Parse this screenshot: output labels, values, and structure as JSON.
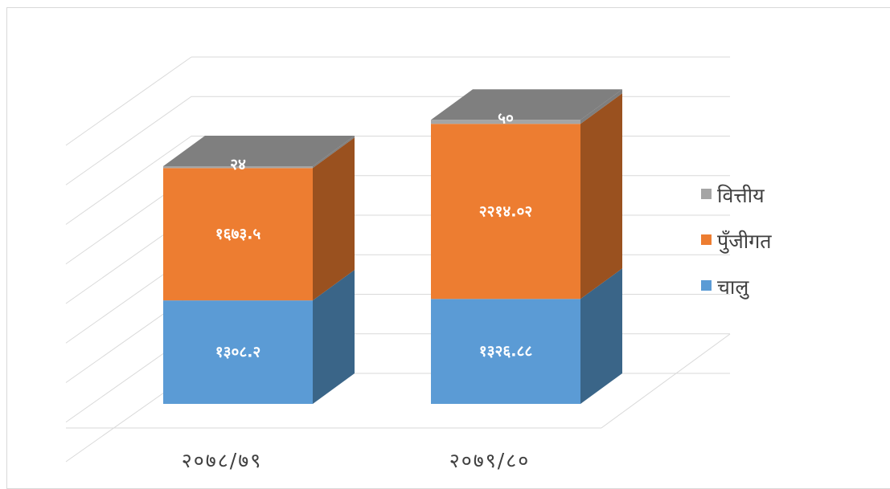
{
  "chart_data": {
    "type": "bar",
    "stacked": true,
    "three_d": true,
    "categories": [
      "२०७८/७९",
      "२०७९/८०"
    ],
    "series": [
      {
        "name": "चालु",
        "values": [
          1308.2,
          1326.88
        ],
        "labels": [
          "१३०८.२",
          "१३२६.८८"
        ],
        "color": "#5b9bd5",
        "side_color": "#3a6588"
      },
      {
        "name": "पुँजीगत",
        "values": [
          1673.5,
          2214.02
        ],
        "labels": [
          "१६७३.५",
          "२२१४.०२"
        ],
        "color": "#ed7d31",
        "side_color": "#9a511f"
      },
      {
        "name": "वित्तीय",
        "values": [
          24,
          50
        ],
        "labels": [
          "२४",
          "५०"
        ],
        "color": "#a5a5a5",
        "side_color": "#7f7f7f"
      }
    ],
    "ylim": [
      0,
      4000
    ],
    "grid": true,
    "legend": "right",
    "title": "",
    "xlabel": "",
    "ylabel": ""
  }
}
